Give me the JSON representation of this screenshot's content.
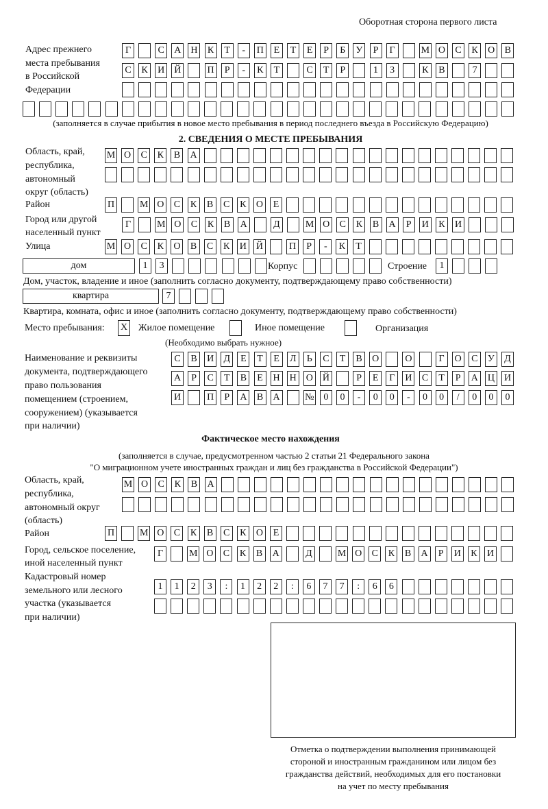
{
  "header": "Оборотная сторона первого листа",
  "previous_address": {
    "label": [
      "Адрес прежнего",
      "места пребывания",
      "в Российской",
      "Федерации"
    ],
    "rows": [
      [
        "Г",
        "",
        "С",
        "А",
        "Н",
        "К",
        "Т",
        "-",
        "П",
        "Е",
        "Т",
        "Е",
        "Р",
        "Б",
        "У",
        "Р",
        "Г",
        "",
        "М",
        "О",
        "С",
        "К",
        "О",
        "В"
      ],
      [
        "С",
        "К",
        "И",
        "Й",
        "",
        "П",
        "Р",
        "-",
        "К",
        "Т",
        "",
        "С",
        "Т",
        "Р",
        "",
        "1",
        "3",
        "",
        "К",
        "В",
        "",
        "7",
        "",
        ""
      ],
      [
        "",
        "",
        "",
        "",
        "",
        "",
        "",
        "",
        "",
        "",
        "",
        "",
        "",
        "",
        "",
        "",
        "",
        "",
        "",
        "",
        "",
        "",
        "",
        ""
      ],
      [
        "",
        "",
        "",
        "",
        "",
        "",
        "",
        "",
        "",
        "",
        "",
        "",
        "",
        "",
        "",
        "",
        "",
        "",
        "",
        "",
        "",
        "",
        "",
        "",
        "",
        "",
        "",
        "",
        "",
        ""
      ]
    ],
    "note": "(заполняется в случае прибытия в новое место пребывания в период последнего въезда в Российскую Федерацию)"
  },
  "section2": {
    "title": "2. СВЕДЕНИЯ О МЕСТЕ ПРЕБЫВАНИЯ",
    "region_label": [
      "Область, край,",
      "республика,",
      "автономный",
      "округ (область)"
    ],
    "region_rows": [
      [
        "М",
        "О",
        "С",
        "К",
        "В",
        "А",
        "",
        "",
        "",
        "",
        "",
        "",
        "",
        "",
        "",
        "",
        "",
        "",
        "",
        "",
        "",
        "",
        "",
        "",
        ""
      ],
      [
        "",
        "",
        "",
        "",
        "",
        "",
        "",
        "",
        "",
        "",
        "",
        "",
        "",
        "",
        "",
        "",
        "",
        "",
        "",
        "",
        "",
        "",
        "",
        "",
        ""
      ]
    ],
    "district_label": "Район",
    "district_row": [
      "П",
      "",
      "М",
      "О",
      "С",
      "К",
      "В",
      "С",
      "К",
      "О",
      "Е",
      "",
      "",
      "",
      "",
      "",
      "",
      "",
      "",
      "",
      "",
      "",
      "",
      "",
      ""
    ],
    "city_label": [
      "Город или другой",
      "населенный пункт"
    ],
    "city_row": [
      "Г",
      "",
      "М",
      "О",
      "С",
      "К",
      "В",
      "А",
      "",
      "Д",
      "",
      "М",
      "О",
      "С",
      "К",
      "В",
      "А",
      "Р",
      "И",
      "К",
      "И",
      "",
      "",
      ""
    ],
    "street_label": "Улица",
    "street_row": [
      "М",
      "О",
      "С",
      "К",
      "О",
      "В",
      "С",
      "К",
      "И",
      "Й",
      "",
      "П",
      "Р",
      "-",
      "К",
      "Т",
      "",
      "",
      "",
      "",
      "",
      "",
      "",
      "",
      ""
    ],
    "house_type": "дом",
    "house_cells": [
      "1",
      "3",
      "",
      "",
      "",
      "",
      "",
      ""
    ],
    "korpus_label": "Корпус",
    "korpus_cells": [
      "",
      "",
      "",
      "",
      ""
    ],
    "building_label": "Строение",
    "building_cells": [
      "1",
      "",
      "",
      ""
    ],
    "house_note": "Дом, участок, владение и иное (заполнить согласно документу, подтверждающему право собственности)",
    "flat_type": "квартира",
    "flat_cells": [
      "7",
      "",
      "",
      ""
    ],
    "flat_note": "Квартира, комната, офис и иное (заполнить согласно документу, подтверждающему право собственности)",
    "stay_label": "Место пребывания:",
    "stay_options": [
      {
        "mark": "Х",
        "label": "Жилое помещение"
      },
      {
        "mark": "",
        "label": "Иное помещение"
      },
      {
        "mark": "",
        "label": "Организация"
      }
    ],
    "stay_note": "(Необходимо выбрать нужное)",
    "doc_label": [
      "Наименование и реквизиты",
      "документа, подтверждающего",
      "право пользования",
      "помещением (строением,",
      "сооружением) (указывается",
      "при наличии)"
    ],
    "doc_rows": [
      [
        "С",
        "В",
        "И",
        "Д",
        "Е",
        "Т",
        "Е",
        "Л",
        "Ь",
        "С",
        "Т",
        "В",
        "О",
        "",
        "О",
        "",
        "Г",
        "О",
        "С",
        "У",
        "Д"
      ],
      [
        "А",
        "Р",
        "С",
        "Т",
        "В",
        "Е",
        "Н",
        "Н",
        "О",
        "Й",
        "",
        "Р",
        "Е",
        "Г",
        "И",
        "С",
        "Т",
        "Р",
        "А",
        "Ц",
        "И"
      ],
      [
        "И",
        "",
        "П",
        "Р",
        "А",
        "В",
        "А",
        "",
        "№",
        "0",
        "0",
        "-",
        "0",
        "0",
        "-",
        "0",
        "0",
        "/",
        "0",
        "0",
        "0"
      ]
    ]
  },
  "actual": {
    "title": "Фактическое место нахождения",
    "note": [
      "(заполняется в случае, предусмотренном частью 2 статьи 21 Федерального закона",
      "\"О миграционном учете иностранных граждан и лиц без гражданства в Российской Федерации\")"
    ],
    "region_label": [
      "Область, край,",
      "республика,",
      "автономный округ",
      "(область)"
    ],
    "region_rows": [
      [
        "М",
        "О",
        "С",
        "К",
        "В",
        "А",
        "",
        "",
        "",
        "",
        "",
        "",
        "",
        "",
        "",
        "",
        "",
        "",
        "",
        "",
        "",
        "",
        "",
        ""
      ],
      [
        "",
        "",
        "",
        "",
        "",
        "",
        "",
        "",
        "",
        "",
        "",
        "",
        "",
        "",
        "",
        "",
        "",
        "",
        "",
        "",
        "",
        "",
        "",
        ""
      ]
    ],
    "district_label": "Район",
    "district_row": [
      "П",
      "",
      "М",
      "О",
      "С",
      "К",
      "В",
      "С",
      "К",
      "О",
      "Е",
      "",
      "",
      "",
      "",
      "",
      "",
      "",
      "",
      "",
      "",
      "",
      "",
      "",
      ""
    ],
    "city_label": [
      "Город, сельское поселение,",
      "иной населенный пункт"
    ],
    "city_row": [
      "Г",
      "",
      "М",
      "О",
      "С",
      "К",
      "В",
      "А",
      "",
      "Д",
      "",
      "М",
      "О",
      "С",
      "К",
      "В",
      "А",
      "Р",
      "И",
      "К",
      "И",
      ""
    ],
    "cadastral_label": [
      "Кадастровый номер",
      "земельного или лесного",
      "участка (указывается",
      "при наличии)"
    ],
    "cadastral_rows": [
      [
        "1",
        "1",
        "2",
        "3",
        ":",
        "1",
        "2",
        "2",
        ":",
        "6",
        "7",
        "7",
        ":",
        "6",
        "6",
        "",
        "",
        "",
        "",
        "",
        "",
        ""
      ],
      [
        "",
        "",
        "",
        "",
        "",
        "",
        "",
        "",
        "",
        "",
        "",
        "",
        "",
        "",
        "",
        "",
        "",
        "",
        "",
        "",
        "",
        ""
      ]
    ]
  },
  "stamp_caption": [
    "Отметка о подтверждении выполнения принимающей",
    "стороной и иностранным гражданином или лицом без",
    "гражданства действий, необходимых для его постановки",
    "на учет по месту пребывания"
  ]
}
